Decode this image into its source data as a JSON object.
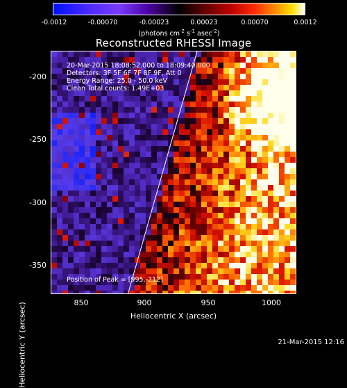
{
  "colorbar": {
    "ticks": [
      "-0.0012",
      "-0.00070",
      "-0.00023",
      "0.00023",
      "0.00070",
      "0.0012"
    ],
    "unit_prefix": "(photons cm",
    "unit_exp1": "-2",
    "unit_mid1": " s",
    "unit_exp2": "-1",
    "unit_mid2": " asec",
    "unit_exp3": "-2",
    "unit_suffix": ")"
  },
  "title": "Reconstructed RHESSI Image",
  "annotations": {
    "line1": "20-Mar-2015 18:08:52.000 to 18:09:40.000",
    "line2": "Detectors: 3F 5F 6F 7F 8F 9F, Att 0",
    "line3": "Energy Range: 25.0 - 50.0 keV",
    "line4": "Clean    Total counts: 1.49E+03",
    "peak": "Position of Peak = [995,-212]"
  },
  "axes": {
    "xlabel": "Heliocentric X (arcsec)",
    "ylabel": "Heliocentric Y (arcsec)",
    "xticks": [
      "850",
      "900",
      "950",
      "1000"
    ],
    "yticks": [
      "-200",
      "-250",
      "-300",
      "-350"
    ]
  },
  "timestamp": "21-Mar-2015 12:16"
}
